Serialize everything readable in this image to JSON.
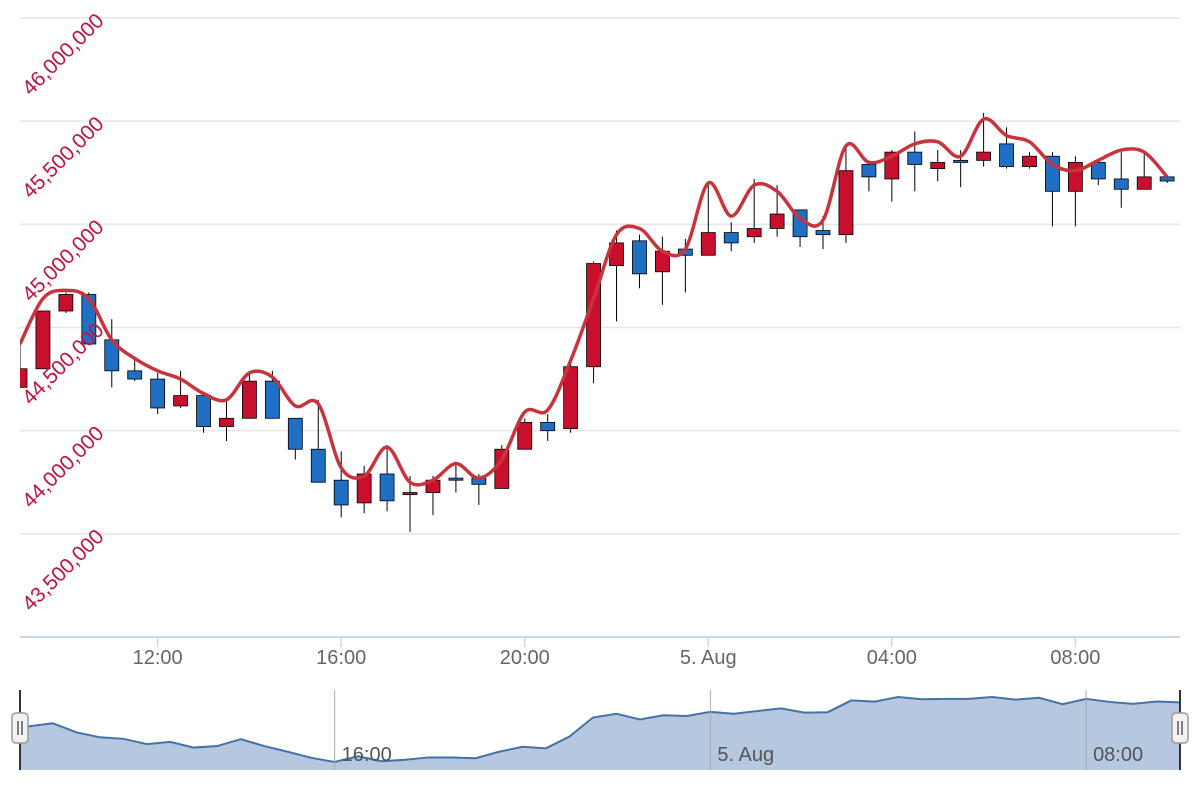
{
  "chart_data": {
    "type": "candlestick",
    "x": [
      9,
      9.5,
      10,
      10.5,
      11,
      11.5,
      12,
      12.5,
      13,
      13.5,
      14,
      14.5,
      15,
      15.5,
      16,
      16.5,
      17,
      17.5,
      18,
      18.5,
      19,
      19.5,
      20,
      20.5,
      21,
      21.5,
      22,
      22.5,
      23,
      23.5,
      24,
      24.5,
      25,
      25.5,
      26,
      26.5,
      27,
      27.5,
      28,
      28.5,
      29,
      29.5,
      30,
      30.5,
      31,
      31.5,
      32,
      32.5,
      33,
      33.5,
      34
    ],
    "xlim": [
      9,
      34.28
    ],
    "xticks": [
      {
        "value": 12,
        "label": "12:00"
      },
      {
        "value": 16,
        "label": "16:00"
      },
      {
        "value": 20,
        "label": "20:00"
      },
      {
        "value": 24,
        "label": "5. Aug"
      },
      {
        "value": 28,
        "label": "04:00"
      },
      {
        "value": 32,
        "label": "08:00"
      }
    ],
    "ylim": [
      43000000,
      46000000
    ],
    "yticks": [
      {
        "value": 43500000,
        "label": "43,500,000"
      },
      {
        "value": 44000000,
        "label": "44,000,000"
      },
      {
        "value": 44500000,
        "label": "44,500,000"
      },
      {
        "value": 45000000,
        "label": "45,000,000"
      },
      {
        "value": 45500000,
        "label": "45,500,000"
      },
      {
        "value": 46000000,
        "label": "46,000,000"
      }
    ],
    "grid": true,
    "series": [
      {
        "type": "candlestick",
        "up_color": "#c8102e",
        "down_color": "#1f6fc5",
        "open": [
          44210000,
          44300000,
          44580000,
          44660000,
          44440000,
          44290000,
          44250000,
          44120000,
          44170000,
          44020000,
          44060000,
          44240000,
          44060000,
          43910000,
          43760000,
          43650000,
          43790000,
          43690000,
          43700000,
          43770000,
          43770000,
          43720000,
          43910000,
          44040000,
          44010000,
          44310000,
          44800000,
          44920000,
          44770000,
          44880000,
          44850000,
          44960000,
          44940000,
          44980000,
          45070000,
          44970000,
          44950000,
          45290000,
          45220000,
          45350000,
          45270000,
          45310000,
          45310000,
          45390000,
          45280000,
          45330000,
          45160000,
          45300000,
          45220000,
          45170000,
          45230000
        ],
        "high": [
          44420000,
          44580000,
          44670000,
          44670000,
          44540000,
          44340000,
          44280000,
          44290000,
          44190000,
          44150000,
          44290000,
          44290000,
          44060000,
          44150000,
          43900000,
          43830000,
          43930000,
          43780000,
          43780000,
          43850000,
          43790000,
          43930000,
          44060000,
          44080000,
          44350000,
          44820000,
          44970000,
          44950000,
          44940000,
          44930000,
          45210000,
          45010000,
          45220000,
          45190000,
          45070000,
          45040000,
          45380000,
          45310000,
          45360000,
          45450000,
          45360000,
          45360000,
          45540000,
          45470000,
          45350000,
          45350000,
          45330000,
          45310000,
          45350000,
          45350000,
          45240000
        ],
        "low": [
          44210000,
          44300000,
          44570000,
          44420000,
          44210000,
          44240000,
          44080000,
          44110000,
          43990000,
          43950000,
          44060000,
          44060000,
          43860000,
          43750000,
          43580000,
          43600000,
          43610000,
          43510000,
          43590000,
          43700000,
          43640000,
          43720000,
          43910000,
          43950000,
          43990000,
          44230000,
          44530000,
          44690000,
          44610000,
          44670000,
          44850000,
          44870000,
          44910000,
          44940000,
          44890000,
          44880000,
          44910000,
          45160000,
          45110000,
          45160000,
          45210000,
          45180000,
          45280000,
          45270000,
          45270000,
          44990000,
          44990000,
          45190000,
          45080000,
          45170000,
          45200000
        ],
        "close": [
          44300000,
          44580000,
          44660000,
          44420000,
          44290000,
          44250000,
          44110000,
          44170000,
          44020000,
          44060000,
          44240000,
          44060000,
          43910000,
          43750000,
          43640000,
          43790000,
          43660000,
          43700000,
          43760000,
          43760000,
          43740000,
          43910000,
          44040000,
          44000000,
          44310000,
          44810000,
          44910000,
          44760000,
          44870000,
          44850000,
          44960000,
          44910000,
          44980000,
          45050000,
          44940000,
          44950000,
          45260000,
          45230000,
          45350000,
          45290000,
          45300000,
          45300000,
          45350000,
          45280000,
          45330000,
          45160000,
          45300000,
          45220000,
          45170000,
          45230000,
          45210000
        ]
      },
      {
        "type": "spline",
        "color": "#c9343c",
        "values": [
          44420000,
          44640000,
          44680000,
          44640000,
          44440000,
          44350000,
          44290000,
          44250000,
          44180000,
          44150000,
          44280000,
          44260000,
          44120000,
          44130000,
          43820000,
          43780000,
          43920000,
          43750000,
          43760000,
          43840000,
          43770000,
          43860000,
          44090000,
          44100000,
          44340000,
          44640000,
          44950000,
          44980000,
          44870000,
          44880000,
          45200000,
          45040000,
          45190000,
          45160000,
          45030000,
          45020000,
          45380000,
          45300000,
          45330000,
          45390000,
          45400000,
          45330000,
          45510000,
          45430000,
          45400000,
          45290000,
          45260000,
          45310000,
          45360000,
          45350000,
          45230000
        ]
      }
    ],
    "navigator": {
      "xlim": [
        9.3,
        34
      ],
      "xticks": [
        {
          "value": 16,
          "label": "16:00"
        },
        {
          "value": 24,
          "label": "5. Aug"
        },
        {
          "value": 32,
          "label": "08:00"
        }
      ],
      "color": "#4572a7",
      "fill": "#b6c7e0"
    }
  }
}
